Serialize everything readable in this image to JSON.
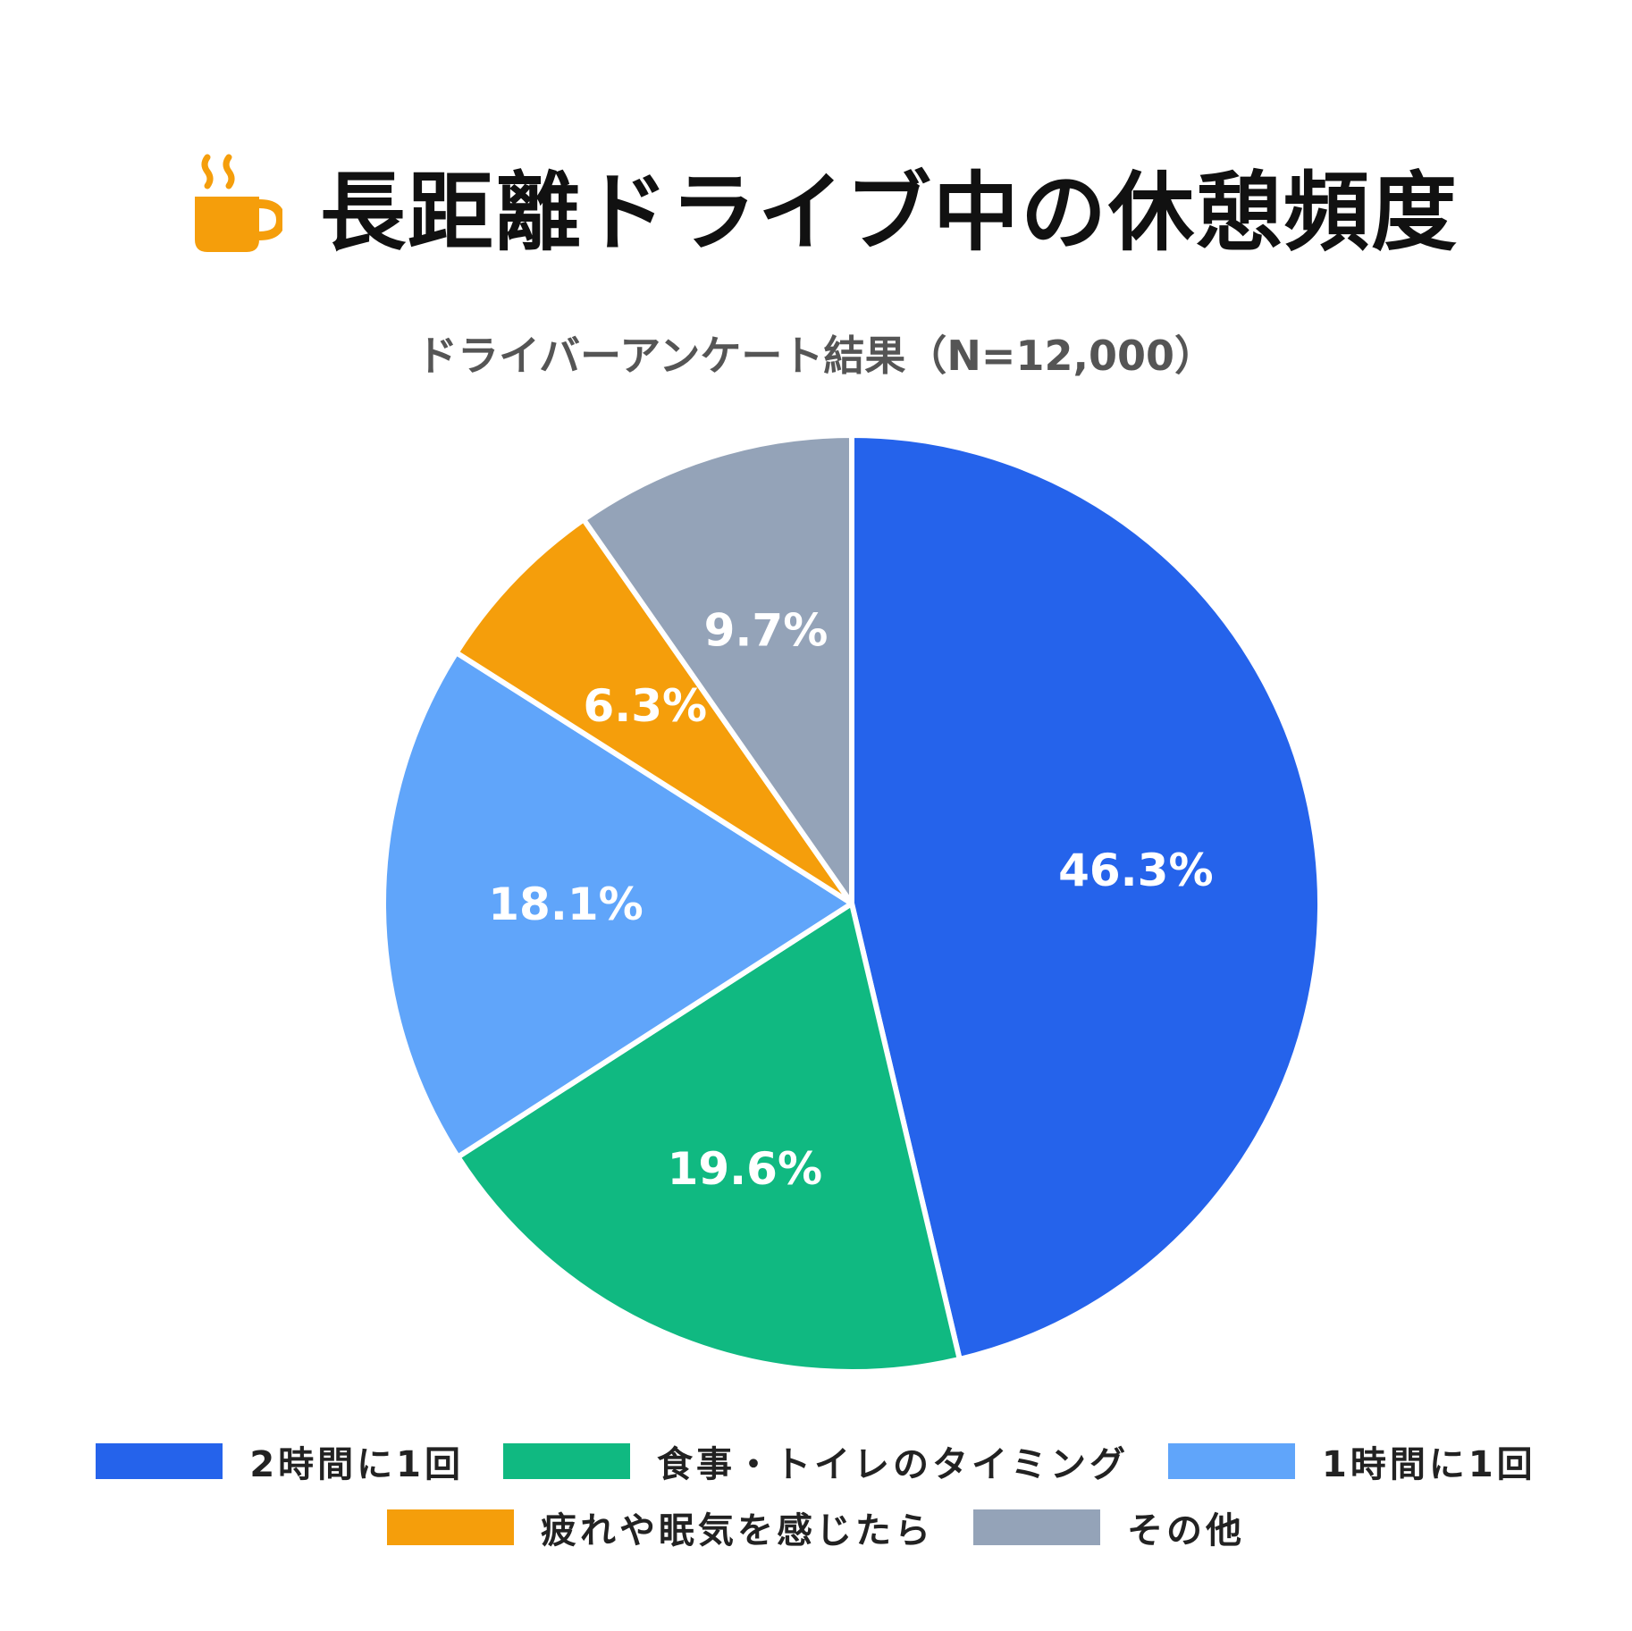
{
  "title": {
    "text": "長距離ドライブ中の休憩頻度",
    "icon": "coffee-cup-icon",
    "icon_color": "#F59E0B"
  },
  "chart_data": {
    "type": "pie",
    "subtitle": "ドライバーアンケート結果（N=12,000）",
    "slices": [
      {
        "label": "2時間に1回",
        "value": 46.3,
        "value_label": "46.3%",
        "color": "#2563EB"
      },
      {
        "label": "食事・トイレのタイミング",
        "value": 19.6,
        "value_label": "19.6%",
        "color": "#10B981"
      },
      {
        "label": "1時間に1回",
        "value": 18.1,
        "value_label": "18.1%",
        "color": "#60A5FA"
      },
      {
        "label": "疲れや眠気を感じたら",
        "value": 6.3,
        "value_label": "6.3%",
        "color": "#F59E0B"
      },
      {
        "label": "その他",
        "value": 9.7,
        "value_label": "9.7%",
        "color": "#94A3B8"
      }
    ],
    "start_angle": "top",
    "direction": "clockwise",
    "legend_position": "bottom"
  }
}
